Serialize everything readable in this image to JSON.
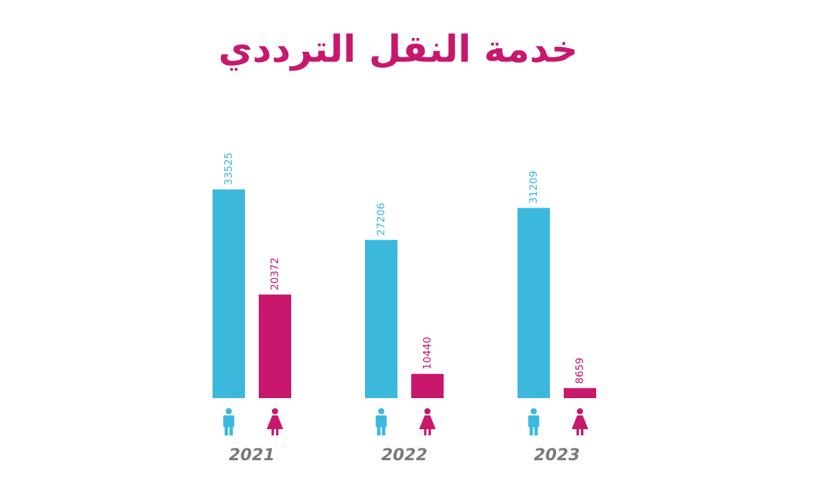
{
  "chart_data": {
    "type": "bar",
    "title": "خدمة النقل الترددي",
    "categories": [
      "2021",
      "2022",
      "2023"
    ],
    "series": [
      {
        "color": "#3db8dd",
        "values": [
          33525,
          27206,
          31209
        ]
      },
      {
        "color": "#c8186d",
        "values": [
          20372,
          10440,
          8659
        ]
      }
    ],
    "ylim": [
      7400,
      34000
    ],
    "grid": false
  }
}
